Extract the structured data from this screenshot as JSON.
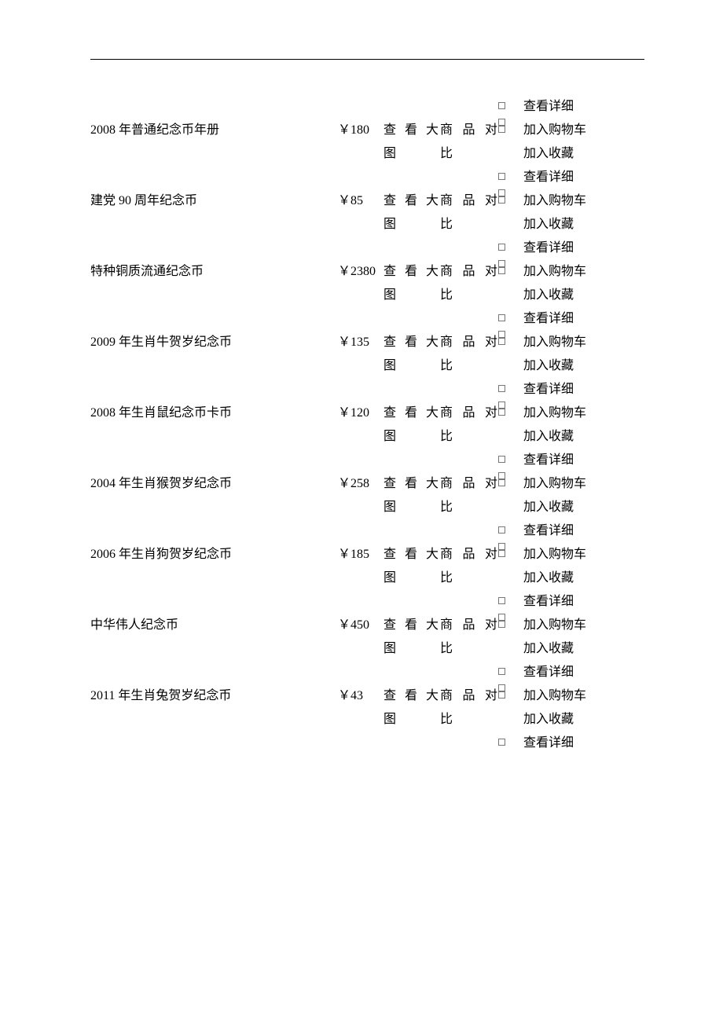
{
  "labels": {
    "view_big": "查看大图",
    "compare": "商品对比",
    "detail": "查看详细",
    "add_cart": "加入购物车",
    "add_fav": "加入收藏"
  },
  "header_actions": {
    "detail": "查看详细"
  },
  "rows": [
    {
      "name": "2008 年普通纪念币年册",
      "price": "180"
    },
    {
      "name": "建党 90 周年纪念币",
      "price": "85"
    },
    {
      "name": "特种铜质流通纪念币",
      "price": "2380"
    },
    {
      "name": "2009 年生肖牛贺岁纪念币",
      "price": "135"
    },
    {
      "name": "2008 年生肖鼠纪念币卡币",
      "price": "120"
    },
    {
      "name": "2004 年生肖猴贺岁纪念币",
      "price": "258"
    },
    {
      "name": "2006 年生肖狗贺岁纪念币",
      "price": "185"
    },
    {
      "name": "中华伟人纪念币",
      "price": "450"
    },
    {
      "name": "2011 年生肖兔贺岁纪念币",
      "price": "43"
    }
  ]
}
